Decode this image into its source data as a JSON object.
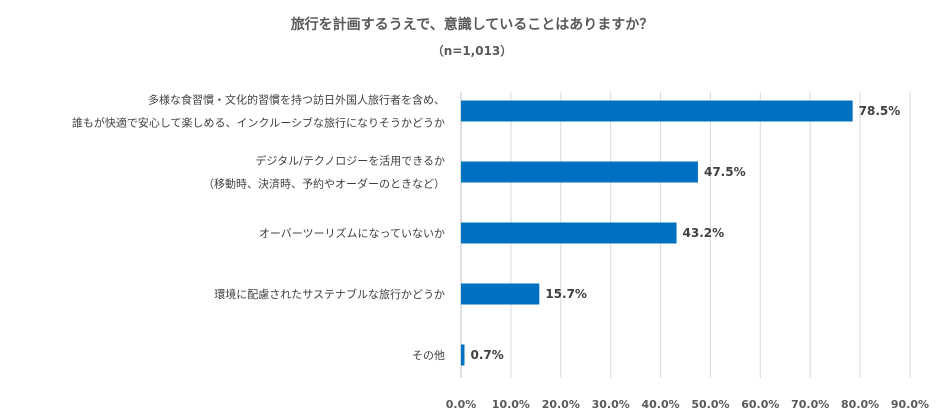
{
  "chart_data": {
    "type": "bar",
    "orientation": "horizontal",
    "title": "旅行を計画するうえで、意識していることはありますか？",
    "subtitle": "（n=1,013）",
    "categories": [
      [
        "多様な食習慣・文化的習慣を持つ訪日外国人旅行者を含め、",
        "誰もが快適で安心して楽しめる、インクルーシブな旅行になりそうかどうか"
      ],
      [
        "デジタル/テクノロジーを活用できるか",
        "（移動時、決済時、予約やオーダーのときなど）"
      ],
      [
        "オーバーツーリズムになっていないか"
      ],
      [
        "環境に配慮されたサステナブルな旅行かどうか"
      ],
      [
        "その他"
      ]
    ],
    "values": [
      78.5,
      47.5,
      43.2,
      15.7,
      0.7
    ],
    "value_labels": [
      "78.5%",
      "47.5%",
      "43.2%",
      "15.7%",
      "0.7%"
    ],
    "xlim": [
      0,
      90
    ],
    "x_ticks": [
      0,
      10,
      20,
      30,
      40,
      50,
      60,
      70,
      80,
      90
    ],
    "x_tick_labels": [
      "0.0%",
      "10.0%",
      "20.0%",
      "30.0%",
      "40.0%",
      "50.0%",
      "60.0%",
      "70.0%",
      "80.0%",
      "90.0%"
    ],
    "grid": true,
    "legend": "none",
    "bar_color": "#0070c0"
  }
}
